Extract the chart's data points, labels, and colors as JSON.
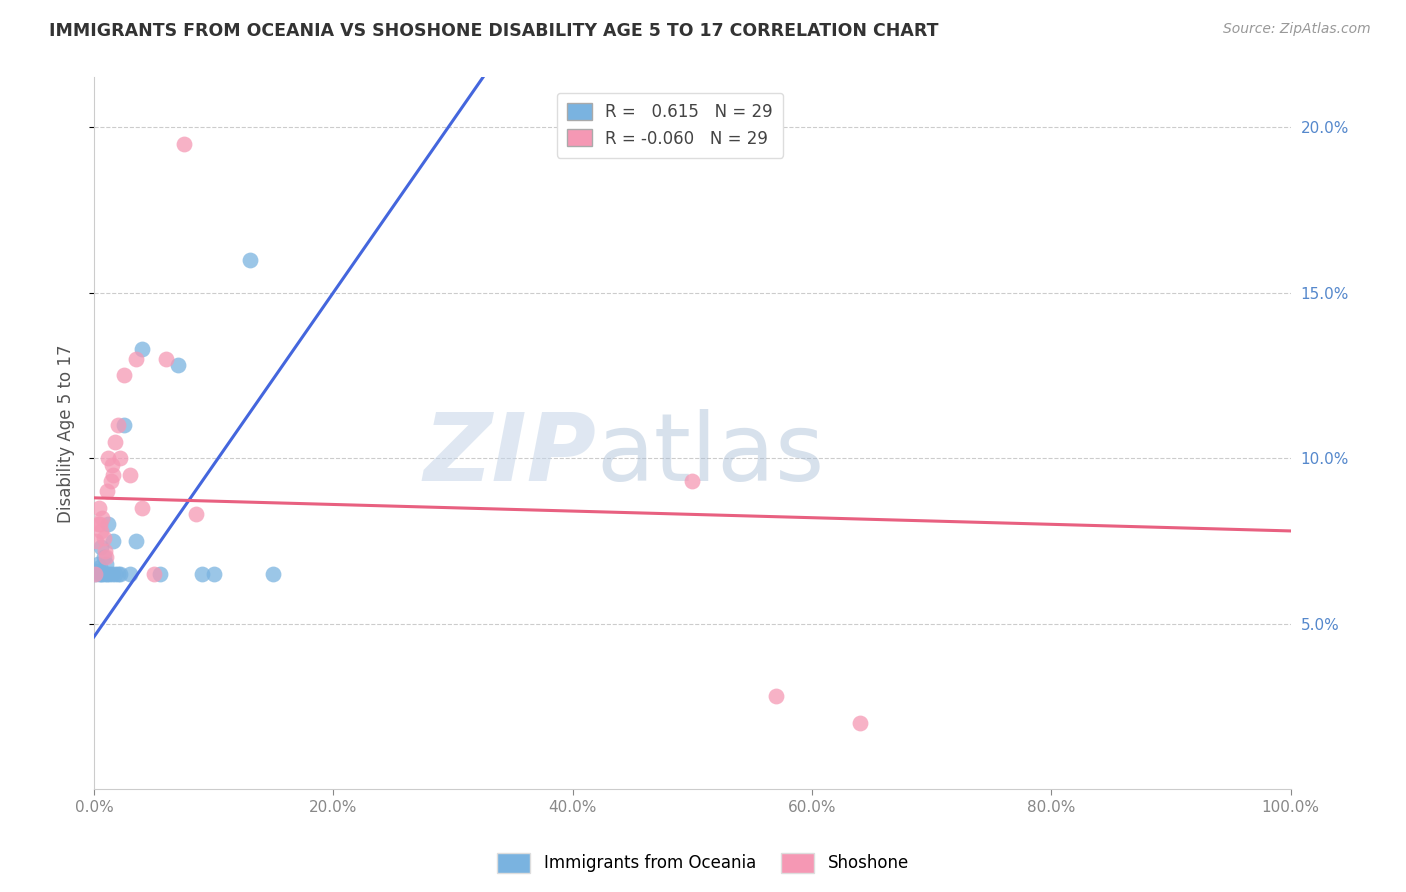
{
  "title": "IMMIGRANTS FROM OCEANIA VS SHOSHONE DISABILITY AGE 5 TO 17 CORRELATION CHART",
  "source": "Source: ZipAtlas.com",
  "ylabel": "Disability Age 5 to 17",
  "xlim": [
    0.0,
    1.0
  ],
  "ylim": [
    0.0,
    0.215
  ],
  "xticks": [
    0.0,
    0.2,
    0.4,
    0.6,
    0.8,
    1.0
  ],
  "xticklabels": [
    "0.0%",
    "20.0%",
    "40.0%",
    "60.0%",
    "80.0%",
    "100.0%"
  ],
  "yticks": [
    0.05,
    0.1,
    0.15,
    0.2
  ],
  "yticklabels": [
    "5.0%",
    "10.0%",
    "15.0%",
    "20.0%"
  ],
  "legend_r_blue": "0.615",
  "legend_n_blue": "29",
  "legend_r_pink": "-0.060",
  "legend_n_pink": "29",
  "blue_color": "#7ab3e0",
  "pink_color": "#f598b4",
  "blue_line_color": "#4466dd",
  "pink_line_color": "#e86080",
  "blue_x": [
    0.001,
    0.002,
    0.003,
    0.004,
    0.005,
    0.006,
    0.006,
    0.007,
    0.008,
    0.009,
    0.01,
    0.011,
    0.012,
    0.013,
    0.015,
    0.016,
    0.018,
    0.02,
    0.022,
    0.025,
    0.03,
    0.035,
    0.04,
    0.055,
    0.07,
    0.09,
    0.1,
    0.13,
    0.15
  ],
  "blue_y": [
    0.065,
    0.066,
    0.068,
    0.065,
    0.067,
    0.065,
    0.073,
    0.065,
    0.07,
    0.065,
    0.068,
    0.065,
    0.08,
    0.065,
    0.065,
    0.075,
    0.065,
    0.065,
    0.065,
    0.11,
    0.065,
    0.075,
    0.133,
    0.065,
    0.128,
    0.065,
    0.065,
    0.16,
    0.065
  ],
  "pink_x": [
    0.001,
    0.002,
    0.003,
    0.004,
    0.005,
    0.006,
    0.007,
    0.008,
    0.009,
    0.01,
    0.011,
    0.012,
    0.014,
    0.015,
    0.016,
    0.018,
    0.02,
    0.022,
    0.025,
    0.03,
    0.035,
    0.04,
    0.05,
    0.06,
    0.075,
    0.085,
    0.5,
    0.57,
    0.64
  ],
  "pink_y": [
    0.065,
    0.075,
    0.08,
    0.085,
    0.08,
    0.078,
    0.082,
    0.076,
    0.072,
    0.07,
    0.09,
    0.1,
    0.093,
    0.098,
    0.095,
    0.105,
    0.11,
    0.1,
    0.125,
    0.095,
    0.13,
    0.085,
    0.065,
    0.13,
    0.195,
    0.083,
    0.093,
    0.028,
    0.02
  ],
  "blue_trend_start_y": 0.046,
  "blue_trend_slope": 0.52,
  "pink_trend_start_y": 0.088,
  "pink_trend_slope": -0.01,
  "grid_color": "#cccccc",
  "right_axis_color": "#5588cc",
  "watermark_zip_color": "#c5d5e8",
  "watermark_atlas_color": "#a8bdd5"
}
